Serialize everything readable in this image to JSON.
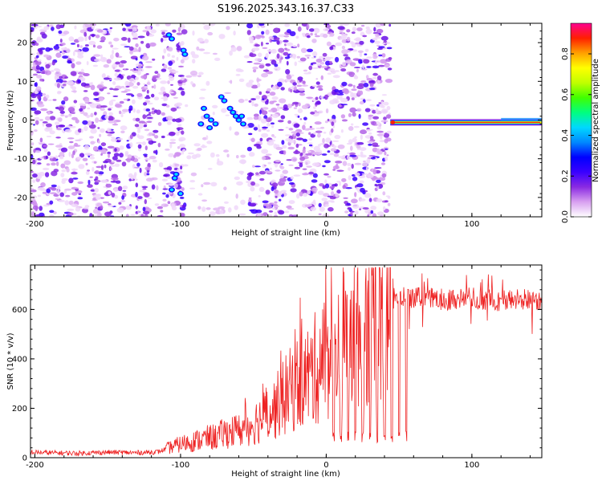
{
  "chart_data": [
    {
      "type": "heatmap",
      "title": "S196.2025.343.16.37.C33",
      "xlabel": "Height of straight line (km)",
      "ylabel": "Frequency (Hz)",
      "xlim": [
        -203,
        148
      ],
      "ylim": [
        -25,
        25
      ],
      "xticks": [
        -200,
        -100,
        0,
        100
      ],
      "yticks": [
        -20,
        -10,
        0,
        10,
        20
      ],
      "colorbar": {
        "label": "Normalized spectral amplitude",
        "range": [
          0,
          0.95
        ],
        "ticks": [
          0.0,
          0.2,
          0.4,
          0.6,
          0.8
        ],
        "colors": [
          "#ffffff",
          "#d8a0f0",
          "#8a2be2",
          "#3a00ff",
          "#0000ff",
          "#0088ff",
          "#00d8ff",
          "#00ff80",
          "#40ff00",
          "#c0ff00",
          "#ffff00",
          "#ffa000",
          "#ff2000",
          "#ff0090"
        ]
      },
      "features": {
        "noise_region_km": [
          -203,
          44
        ],
        "clear_gap_km": [
          -97,
          -53
        ],
        "carrier_region_km": [
          44,
          148
        ],
        "carrier_frequency_hz": -0.6
      }
    },
    {
      "type": "line",
      "xlabel": "Height of straight line (km)",
      "ylabel": "SNR (10 * v/v)",
      "xlim": [
        -203,
        148
      ],
      "ylim": [
        0,
        780
      ],
      "xticks": [
        -200,
        -100,
        0,
        100
      ],
      "yticks": [
        0,
        200,
        400,
        600
      ],
      "series": [
        {
          "name": "SNR",
          "color": "#ee2222",
          "x": [
            -203,
            -190,
            -170,
            -150,
            -130,
            -115,
            -108,
            -100,
            -95,
            -90,
            -85,
            -80,
            -75,
            -70,
            -65,
            -60,
            -55,
            -50,
            -45,
            -40,
            -35,
            -30,
            -25,
            -20,
            -15,
            -10,
            -5,
            0,
            5,
            10,
            15,
            20,
            25,
            30,
            35,
            40,
            45,
            50,
            55,
            60,
            70,
            80,
            90,
            100,
            110,
            120,
            130,
            140,
            148
          ],
          "values": [
            22,
            20,
            18,
            22,
            20,
            24,
            40,
            55,
            62,
            68,
            75,
            82,
            85,
            100,
            105,
            110,
            120,
            140,
            160,
            180,
            200,
            240,
            270,
            300,
            320,
            340,
            380,
            410,
            450,
            480,
            500,
            530,
            560,
            590,
            610,
            630,
            640,
            645,
            645,
            645,
            645,
            640,
            645,
            645,
            640,
            635,
            640,
            640,
            640
          ]
        }
      ]
    }
  ]
}
